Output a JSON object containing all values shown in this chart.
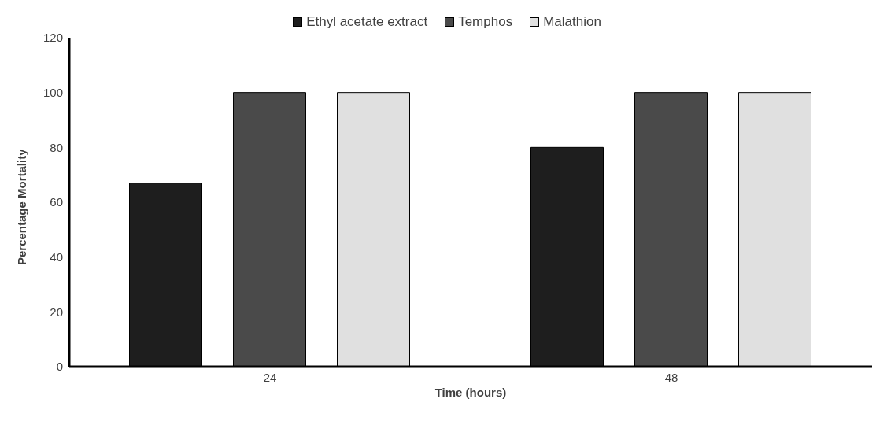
{
  "chart_data": {
    "type": "bar",
    "categories": [
      "24",
      "48"
    ],
    "xlabel": "Time (hours)",
    "ylabel": "Percentage  Mortality",
    "series": [
      {
        "name": "Ethyl acetate extract",
        "color": "#1e1e1e",
        "values": [
          67,
          80
        ]
      },
      {
        "name": "Temphos",
        "color": "#4a4a4a",
        "values": [
          100,
          100
        ]
      },
      {
        "name": "Malathion",
        "color": "#e0e0e0",
        "values": [
          100,
          100
        ]
      }
    ],
    "ylim": [
      0,
      120
    ],
    "yticks": [
      0,
      20,
      40,
      60,
      80,
      100,
      120
    ],
    "grid": false,
    "legend": "top"
  }
}
